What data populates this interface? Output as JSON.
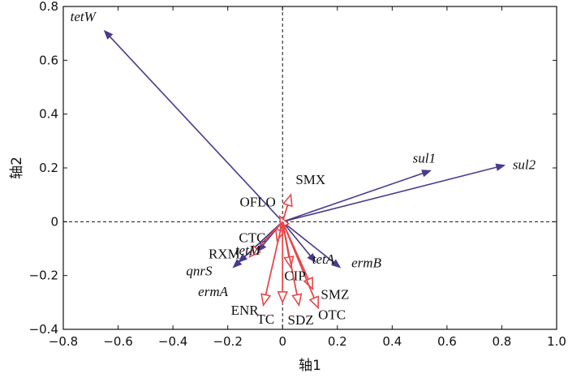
{
  "chart_data": {
    "type": "scatter",
    "xlabel": "轴1",
    "ylabel": "轴2",
    "xlim": [
      -0.8,
      1.0
    ],
    "ylim": [
      -0.4,
      0.8
    ],
    "xticks": [
      -0.8,
      -0.6,
      -0.4,
      -0.2,
      0,
      0.2,
      0.4,
      0.6,
      0.8,
      1.0
    ],
    "yticks": [
      -0.4,
      -0.2,
      0,
      0.2,
      0.4,
      0.6,
      0.8
    ],
    "xtick_labels": [
      "−0.8",
      "−0.6",
      "−0.4",
      "−0.2",
      "0",
      "0.2",
      "0.4",
      "0.6",
      "0.8",
      "1.0"
    ],
    "ytick_labels": [
      "−0.4",
      "−0.2",
      "0",
      "0.2",
      "0.4",
      "0.6",
      "0.8"
    ],
    "colors": {
      "gene": "#4b3a8c",
      "drug": "#e8474a"
    },
    "series": [
      {
        "group": "gene",
        "arrows": [
          {
            "label": "tetW",
            "x": -0.65,
            "y": 0.71
          },
          {
            "label": "sul1",
            "x": 0.54,
            "y": 0.19
          },
          {
            "label": "sul2",
            "x": 0.81,
            "y": 0.21
          },
          {
            "label": "ermB",
            "x": 0.21,
            "y": -0.17
          },
          {
            "label": "tetA",
            "x": 0.12,
            "y": -0.15
          },
          {
            "label": "tetM",
            "x": -0.09,
            "y": -0.11
          },
          {
            "label": "qnrS",
            "x": -0.18,
            "y": -0.17
          },
          {
            "label": "ermA",
            "x": -0.16,
            "y": -0.15
          }
        ]
      },
      {
        "group": "drug",
        "arrows": [
          {
            "label": "SMX",
            "x": 0.03,
            "y": 0.1
          },
          {
            "label": "OFLO",
            "x": -0.01,
            "y": 0.02
          },
          {
            "label": "CTC",
            "x": -0.02,
            "y": -0.07
          },
          {
            "label": "RXM",
            "x": -0.12,
            "y": -0.13
          },
          {
            "label": "CIP",
            "x": 0.03,
            "y": -0.17
          },
          {
            "label": "SMZ",
            "x": 0.11,
            "y": -0.25
          },
          {
            "label": "OTC",
            "x": 0.13,
            "y": -0.32
          },
          {
            "label": "SDZ",
            "x": 0.06,
            "y": -0.31
          },
          {
            "label": "TC",
            "x": 0.0,
            "y": -0.3
          },
          {
            "label": "ENR",
            "x": -0.07,
            "y": -0.31
          }
        ]
      }
    ]
  }
}
